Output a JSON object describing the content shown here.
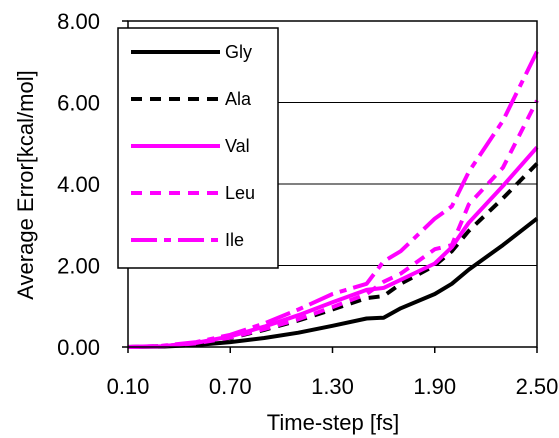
{
  "chart_data": {
    "type": "line",
    "xlabel": "Time-step [fs]",
    "ylabel": "Average Error[kcal/mol]",
    "xlim": [
      0.1,
      2.5
    ],
    "ylim": [
      0,
      8
    ],
    "x_ticks": [
      "0.10",
      "0.70",
      "1.30",
      "1.90",
      "2.50"
    ],
    "y_ticks": [
      "0.00",
      "2.00",
      "4.00",
      "6.00",
      "8.00"
    ],
    "grid": "horizontal",
    "legend_position": "top-left",
    "x": [
      0.1,
      0.3,
      0.5,
      0.7,
      0.9,
      1.1,
      1.3,
      1.5,
      1.6,
      1.7,
      1.9,
      2.0,
      2.1,
      2.3,
      2.5
    ],
    "series": [
      {
        "name": "Gly",
        "color": "#000000",
        "dash": "solid",
        "values": [
          0,
          0.01,
          0.05,
          0.12,
          0.22,
          0.35,
          0.52,
          0.7,
          0.72,
          0.95,
          1.3,
          1.55,
          1.9,
          2.5,
          3.15
        ]
      },
      {
        "name": "Ala",
        "color": "#000000",
        "dash": "dash",
        "values": [
          0,
          0.02,
          0.09,
          0.22,
          0.42,
          0.65,
          0.92,
          1.2,
          1.25,
          1.55,
          2.0,
          2.35,
          2.85,
          3.65,
          4.5
        ]
      },
      {
        "name": "Val",
        "color": "#ff00ff",
        "dash": "solid",
        "values": [
          0,
          0.02,
          0.1,
          0.26,
          0.5,
          0.78,
          1.1,
          1.4,
          1.45,
          1.65,
          2.05,
          2.45,
          3.05,
          3.95,
          4.9
        ]
      },
      {
        "name": "Leu",
        "color": "#ff00ff",
        "dash": "dash",
        "values": [
          0,
          0.02,
          0.09,
          0.23,
          0.44,
          0.68,
          0.98,
          1.3,
          1.6,
          1.8,
          2.4,
          2.5,
          3.5,
          4.4,
          6.05
        ]
      },
      {
        "name": "Ile",
        "color": "#ff00ff",
        "dash": "dashdot",
        "values": [
          0,
          0.03,
          0.12,
          0.3,
          0.58,
          0.92,
          1.3,
          1.55,
          2.1,
          2.35,
          3.15,
          3.45,
          4.3,
          5.55,
          7.25
        ]
      }
    ]
  }
}
